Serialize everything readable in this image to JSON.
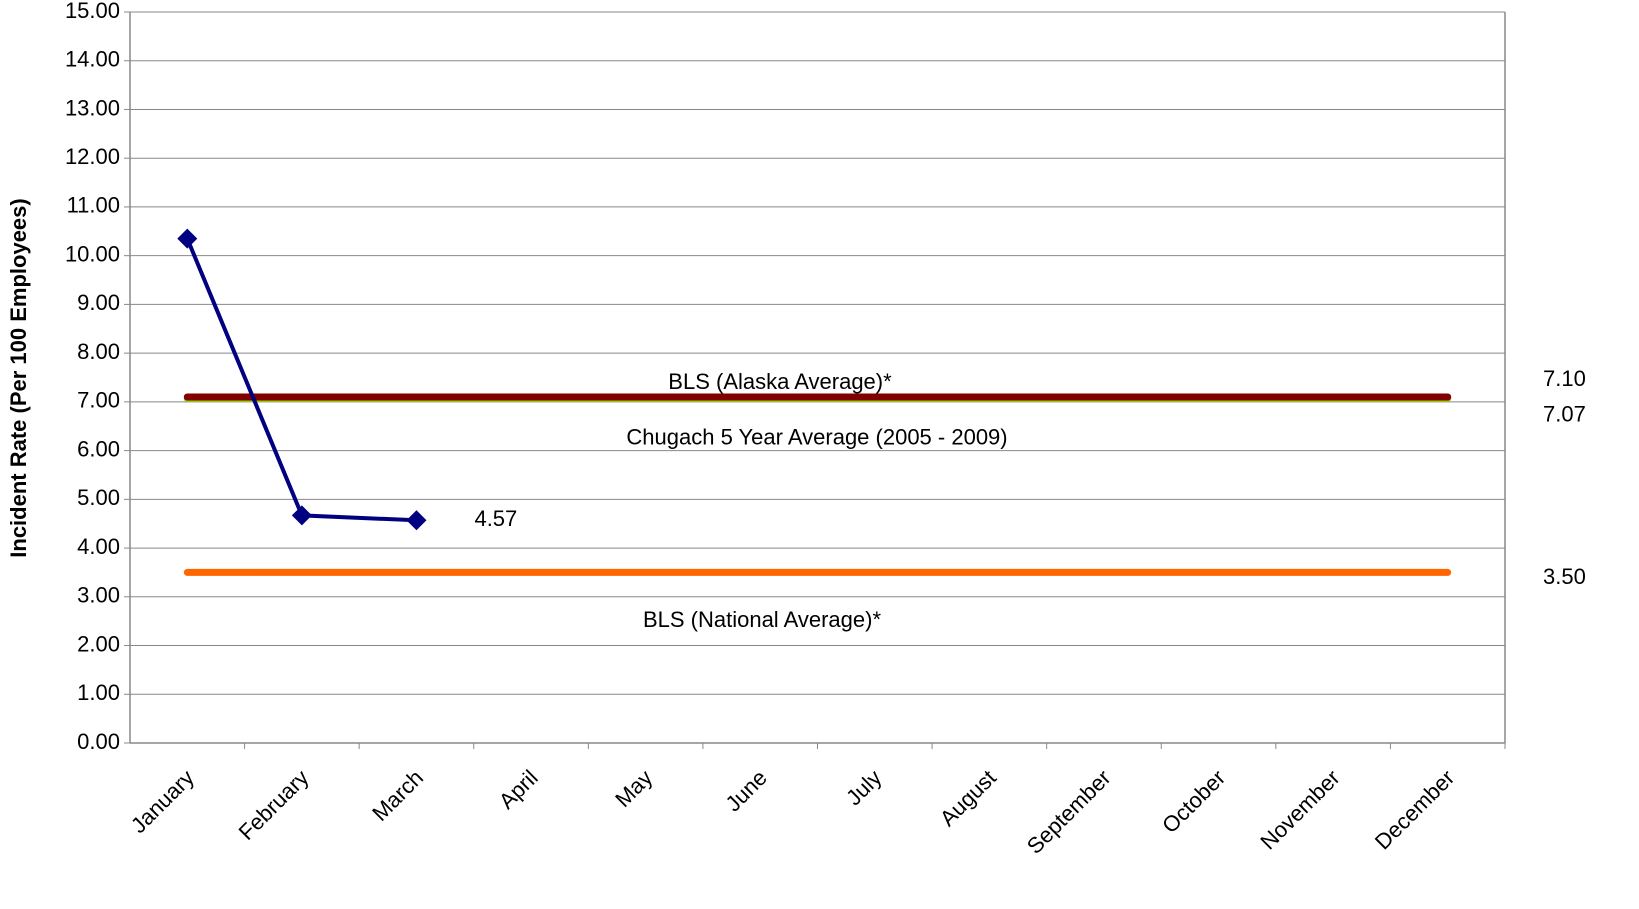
{
  "chart_data": {
    "type": "line",
    "y_label": "Incident Rate (Per 100 Employees)",
    "categories": [
      "January",
      "February",
      "March",
      "April",
      "May",
      "June",
      "July",
      "August",
      "September",
      "October",
      "November",
      "December"
    ],
    "series": [
      {
        "name": "Chugach 5 Year Average (2005 - 2009)",
        "color": "#99cc00",
        "values": [
          7.07,
          7.07,
          7.07,
          7.07,
          7.07,
          7.07,
          7.07,
          7.07,
          7.07,
          7.07,
          7.07,
          7.07
        ],
        "value_labels": [
          null,
          null,
          null,
          null,
          null,
          null,
          null,
          null,
          null,
          null,
          null,
          "7.07"
        ]
      },
      {
        "name": "BLS (Alaska Average)*",
        "color": "#800000",
        "values": [
          7.1,
          7.1,
          7.1,
          7.1,
          7.1,
          7.1,
          7.1,
          7.1,
          7.1,
          7.1,
          7.1,
          7.1
        ],
        "value_labels": [
          null,
          null,
          null,
          null,
          null,
          null,
          null,
          null,
          null,
          null,
          null,
          "7.10"
        ]
      },
      {
        "name": "BLS (National Average)*",
        "color": "#ff6600",
        "values": [
          3.5,
          3.5,
          3.5,
          3.5,
          3.5,
          3.5,
          3.5,
          3.5,
          3.5,
          3.5,
          3.5,
          3.5
        ],
        "value_labels": [
          null,
          null,
          null,
          null,
          null,
          null,
          null,
          null,
          null,
          null,
          null,
          "3.50"
        ]
      },
      {
        "color": "#000080",
        "markers": true,
        "values": [
          10.35,
          4.67,
          4.57,
          null,
          null,
          null,
          null,
          null,
          null,
          null,
          null,
          null
        ],
        "value_labels": [
          null,
          null,
          "4.57",
          null,
          null,
          null,
          null,
          null,
          null,
          null,
          null,
          null
        ]
      }
    ],
    "ylim": [
      0,
      15
    ],
    "yticks": [
      {
        "value": 0,
        "label": "0.00"
      },
      {
        "value": 1,
        "label": "1.00"
      },
      {
        "value": 2,
        "label": "2.00"
      },
      {
        "value": 3,
        "label": "3.00"
      },
      {
        "value": 4,
        "label": "4.00"
      },
      {
        "value": 5,
        "label": "5.00"
      },
      {
        "value": 6,
        "label": "6.00"
      },
      {
        "value": 7,
        "label": "7.00"
      },
      {
        "value": 8,
        "label": "8.00"
      },
      {
        "value": 9,
        "label": "9.00"
      },
      {
        "value": 10,
        "label": "10.00"
      },
      {
        "value": 11,
        "label": "11.00"
      },
      {
        "value": 12,
        "label": "12.00"
      },
      {
        "value": 13,
        "label": "13.00"
      },
      {
        "value": 14,
        "label": "14.00"
      },
      {
        "value": 15,
        "label": "15.00"
      }
    ],
    "grid": true
  }
}
